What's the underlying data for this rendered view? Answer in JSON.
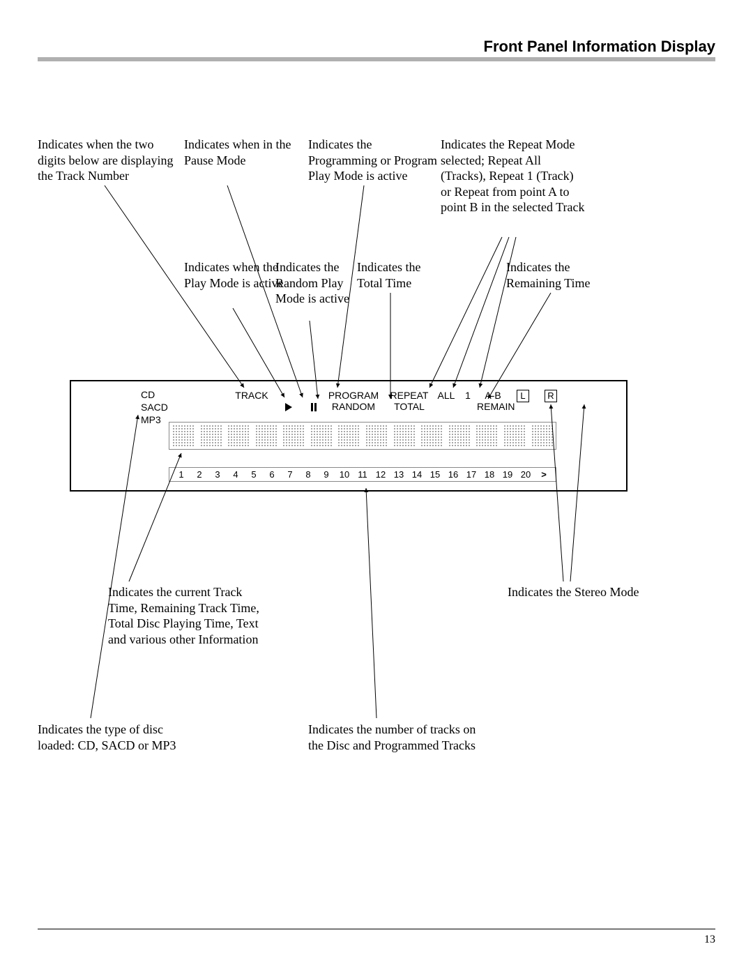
{
  "title": "Front Panel Information Display",
  "callouts": {
    "trackDigits": "Indicates when the two digits below are displaying the Track Number",
    "pause": "Indicates when in the Pause Mode",
    "program": "Indicates the Programming or Program Play Mode is active",
    "repeat": "Indicates the Repeat Mode selected; Repeat All (Tracks), Repeat 1 (Track) or Repeat from point A to point B in the selected Track",
    "play": "Indicates when the Play Mode is active",
    "random": "Indicates the Random Play Mode is active",
    "total": "Indicates the Total Time",
    "remain": "Indicates the Remaining Time",
    "trackTime": "Indicates the current Track Time, Remaining Track Time, Total Disc Playing Time, Text and various other Information",
    "stereo": "Indicates the Stereo Mode",
    "disc": "Indicates the type of disc loaded: CD, SACD or MP3",
    "tracks": "Indicates the number of tracks on the Disc and Programmed Tracks"
  },
  "panel": {
    "discTypes": [
      "CD",
      "SACD",
      "MP3"
    ],
    "labels": {
      "track": "TRACK",
      "program": "PROGRAM",
      "random": "RANDOM",
      "repeat": "REPEAT",
      "all": "ALL",
      "one": "1",
      "ab": "A-B",
      "total": "TOTAL",
      "remain": "REMAIN",
      "L": "L",
      "R": "R"
    },
    "trackCount": 20
  },
  "pageNumber": "13",
  "colors": {
    "ruleGray": "#b0b0b0",
    "black": "#000000",
    "panelGray": "#888888"
  }
}
